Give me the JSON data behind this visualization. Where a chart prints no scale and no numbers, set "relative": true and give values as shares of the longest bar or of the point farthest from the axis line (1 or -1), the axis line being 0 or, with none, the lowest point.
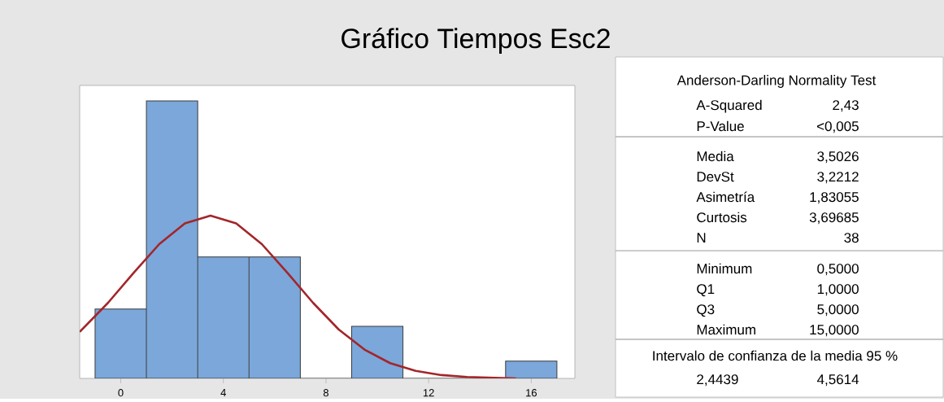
{
  "chart_data": {
    "type": "histogram",
    "title": "Gráfico Tiempos Esc2",
    "relative": true,
    "bins": [
      -1,
      1,
      3,
      5,
      7,
      9,
      11,
      13,
      15,
      17
    ],
    "values": [
      0.25,
      1,
      0.4375,
      0.4375,
      0,
      0.1875,
      0,
      0,
      0.0625
    ],
    "color": "#7ba7da",
    "series": [
      {
        "type": "line",
        "color": "#a3262a",
        "x": [
          -1.6,
          -0.5,
          0.5,
          1.5,
          2.5,
          3.5,
          4.5,
          5.5,
          6.5,
          7.5,
          8.5,
          9.5,
          10.5,
          11.5,
          12.5,
          13.5,
          15.4
        ],
        "values": [
          0.168,
          0.272,
          0.38,
          0.484,
          0.559,
          0.587,
          0.559,
          0.484,
          0.38,
          0.272,
          0.176,
          0.104,
          0.055,
          0.027,
          0.012,
          0.005,
          0.0
        ]
      }
    ],
    "xlim": [
      -1.6,
      17.7
    ],
    "xticks": [
      0,
      4,
      8,
      12,
      16
    ],
    "annotations": [
      "Anderson-Darling Normality Test",
      "A-Squared",
      "2,43",
      "P-Value",
      "<0,005",
      "Media",
      "3,5026",
      "DevSt",
      "3,2212",
      "Asimetría",
      "1,83055",
      "Curtosis",
      "3,69685",
      "N",
      "38",
      "Minimum",
      "0,5000",
      "Q1",
      "1,0000",
      "Q3",
      "5,0000",
      "Maximum",
      "15,0000",
      "Intervalo de confianza de la media 95 %",
      "2,4439",
      "4,5614"
    ]
  }
}
